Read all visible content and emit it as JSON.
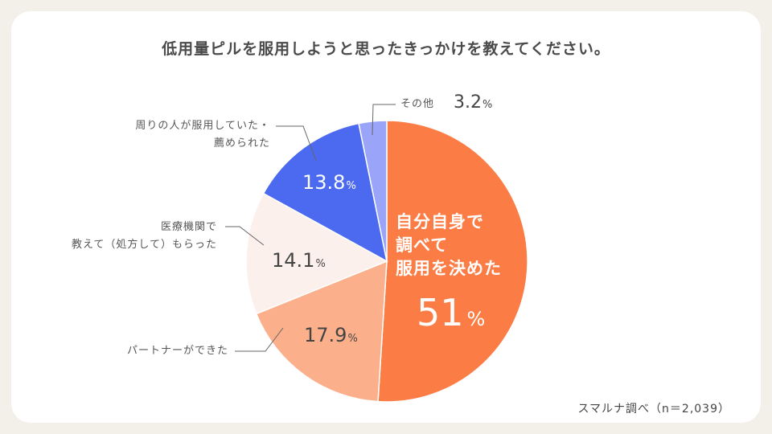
{
  "chart_data": {
    "type": "pie",
    "title": "低用量ピルを服用しようと思ったきっかけを教えてください。",
    "source_note": "スマルナ調べ（n＝2,039）",
    "unit": "%",
    "slices": [
      {
        "label": "自分自身で調べて服用を決めた",
        "label_lines": [
          "自分自身で",
          "調べて",
          "服用を決めた"
        ],
        "value": 51,
        "value_text": "51",
        "color": "#fb7c44"
      },
      {
        "label": "パートナーができた",
        "label_lines": [
          "パートナーができた"
        ],
        "value": 17.9,
        "value_text": "17.9",
        "color": "#fbb08b"
      },
      {
        "label": "医療機関で教えて（処方して）もらった",
        "label_lines": [
          "医療機関で",
          "教えて（処方して）もらった"
        ],
        "value": 14.1,
        "value_text": "14.1",
        "color": "#fcf0ec"
      },
      {
        "label": "周りの人が服用していた・薦められた",
        "label_lines": [
          "周りの人が服用していた・",
          "薦められた"
        ],
        "value": 13.8,
        "value_text": "13.8",
        "color": "#4c6af0"
      },
      {
        "label": "その他",
        "label_lines": [
          "その他"
        ],
        "value": 3.2,
        "value_text": "3.2",
        "color": "#9aa4f9"
      }
    ]
  }
}
